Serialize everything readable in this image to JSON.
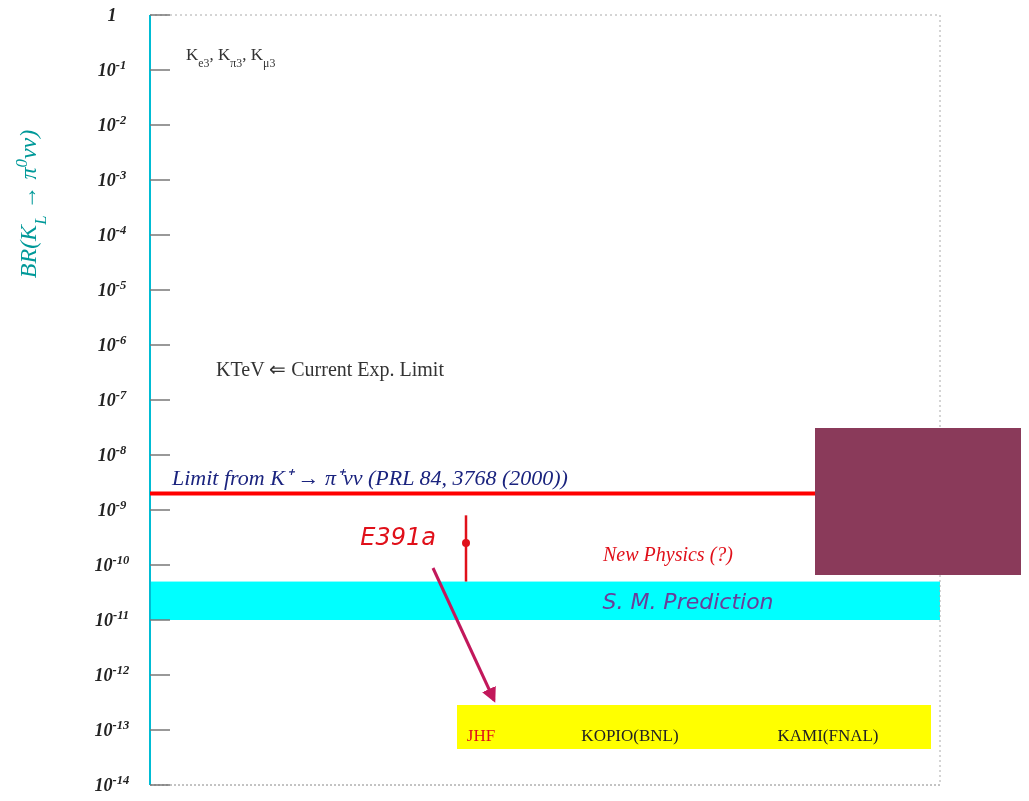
{
  "chart_data": {
    "type": "scatter",
    "ylabel": "BR(K$_{L}$ → π$^{0}$νν)",
    "log": "y",
    "ylim": [
      1e-14,
      1
    ],
    "yticks": [
      {
        "value": 1,
        "label": "1"
      },
      {
        "value": 0.1,
        "label": "10$^{-1}$"
      },
      {
        "value": 0.01,
        "label": "10$^{-2}$"
      },
      {
        "value": 0.001,
        "label": "10$^{-3}$"
      },
      {
        "value": 0.0001,
        "label": "10$^{-4}$"
      },
      {
        "value": 1e-05,
        "label": "10$^{-5}$"
      },
      {
        "value": 1e-06,
        "label": "10$^{-6}$"
      },
      {
        "value": 1e-07,
        "label": "10$^{-7}$"
      },
      {
        "value": 1e-08,
        "label": "10$^{-8}$"
      },
      {
        "value": 1e-09,
        "label": "10$^{-9}$"
      },
      {
        "value": 1e-10,
        "label": "10$^{-10}$"
      },
      {
        "value": 1e-11,
        "label": "10$^{-11}$"
      },
      {
        "value": 1e-12,
        "label": "10$^{-12}$"
      },
      {
        "value": 1e-13,
        "label": "10$^{-13}$"
      },
      {
        "value": 1e-14,
        "label": "10$^{-14}$"
      }
    ],
    "categories": [
      null,
      null,
      null,
      null,
      null,
      null
    ],
    "series": [
      {
        "name": "E391a",
        "color": "#e0101a",
        "values": [
          null,
          null,
          2.5e-10,
          null,
          null,
          null
        ],
        "errors": [
          null,
          null,
          [
            5e-11,
            8e-10
          ],
          null,
          null,
          null
        ]
      }
    ],
    "marker": "circle",
    "ref_lines": [
      {
        "axis": "y",
        "value": 2e-09,
        "label": "Limit from K⁺ → π⁺νν  (PRL 84, 3768 (2000))",
        "color": "#ff0000"
      }
    ],
    "bands": [
      {
        "axis": "y",
        "from": 1e-11,
        "to": 5e-11,
        "label": "S. M. Prediction",
        "color": "#00ffff"
      }
    ],
    "annotations": [
      "K$_{e3}$, K$_{π3}$, K$_{μ3}$",
      "KTeV ⇐ Current Exp. Limit",
      "New Physics (?)",
      "JHF",
      "KOPIO(BNL)",
      "KAMI(FNAL)"
    ]
  }
}
